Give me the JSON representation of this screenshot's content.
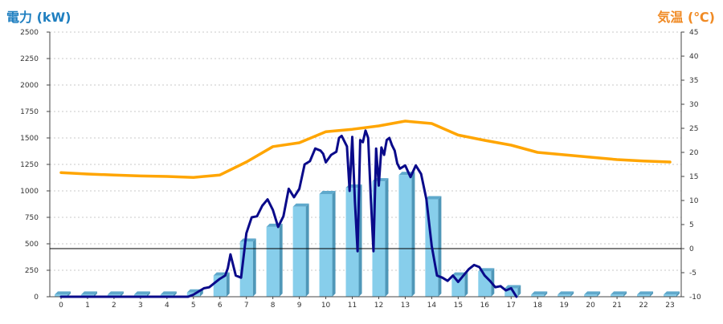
{
  "chart_data": {
    "type": "bar",
    "left_axis_title": "電力 (kW)",
    "right_axis_title": "気温 (℃)",
    "xlim": [
      0,
      23
    ],
    "categories": [
      "0",
      "1",
      "2",
      "3",
      "4",
      "5",
      "6",
      "7",
      "8",
      "9",
      "10",
      "11",
      "12",
      "13",
      "14",
      "15",
      "16",
      "17",
      "18",
      "19",
      "20",
      "21",
      "22",
      "23"
    ],
    "y_left": {
      "ylim": [
        0,
        2500
      ],
      "ticks": [
        0,
        250,
        500,
        750,
        1000,
        1250,
        1500,
        1750,
        2000,
        2250,
        2500
      ]
    },
    "y_right": {
      "ylim": [
        -10,
        45
      ],
      "ticks": [
        -10,
        -5,
        0,
        5,
        10,
        15,
        20,
        25,
        30,
        35,
        40,
        45
      ]
    },
    "grid": true,
    "bar_series": {
      "name": "",
      "axis": "left",
      "color": "#87ceeb",
      "values": [
        20,
        20,
        20,
        20,
        20,
        40,
        200,
        520,
        660,
        850,
        970,
        1030,
        1090,
        1150,
        920,
        200,
        240,
        80,
        20,
        20,
        20,
        20,
        20,
        20
      ]
    },
    "line_series": [
      {
        "name": "",
        "axis": "left",
        "color": "#0a0a8a",
        "x": [
          0,
          1,
          2,
          3,
          4,
          4.8,
          5,
          5.2,
          5.4,
          5.6,
          5.8,
          6,
          6.2,
          6.3,
          6.4,
          6.5,
          6.6,
          6.8,
          7,
          7.2,
          7.4,
          7.6,
          7.8,
          8,
          8.2,
          8.4,
          8.6,
          8.8,
          9,
          9.2,
          9.4,
          9.6,
          9.8,
          9.9,
          10,
          10.2,
          10.4,
          10.5,
          10.6,
          10.8,
          10.9,
          11,
          11.1,
          11.2,
          11.3,
          11.4,
          11.5,
          11.6,
          11.7,
          11.8,
          11.9,
          12,
          12.1,
          12.2,
          12.3,
          12.4,
          12.5,
          12.6,
          12.7,
          12.8,
          13,
          13.2,
          13.4,
          13.6,
          13.8,
          14,
          14.2,
          14.4,
          14.6,
          14.8,
          15,
          15.2,
          15.4,
          15.6,
          15.8,
          16,
          16.2,
          16.4,
          16.6,
          16.8,
          17,
          17.2
        ],
        "values": [
          0,
          0,
          0,
          0,
          0,
          0,
          20,
          50,
          80,
          90,
          130,
          170,
          200,
          270,
          400,
          300,
          200,
          180,
          600,
          750,
          760,
          860,
          920,
          820,
          660,
          760,
          1020,
          940,
          1020,
          1250,
          1280,
          1400,
          1380,
          1350,
          1270,
          1340,
          1370,
          1500,
          1520,
          1420,
          1000,
          1510,
          900,
          430,
          1480,
          1460,
          1570,
          1500,
          930,
          430,
          1400,
          1050,
          1410,
          1340,
          1480,
          1500,
          1430,
          1380,
          1260,
          1210,
          1240,
          1130,
          1240,
          1160,
          920,
          480,
          200,
          180,
          150,
          200,
          140,
          200,
          260,
          300,
          280,
          200,
          150,
          90,
          100,
          60,
          80,
          0
        ],
        "label_axis": "left"
      },
      {
        "name": "",
        "axis": "right",
        "color": "#ffa500",
        "x": [
          0,
          1,
          2,
          3,
          4,
          5,
          6,
          7,
          8,
          9,
          10,
          11,
          12,
          13,
          14,
          15,
          16,
          17,
          18,
          19,
          20,
          21,
          22,
          23
        ],
        "values": [
          15.8,
          15.5,
          15.3,
          15.1,
          15.0,
          14.8,
          15.3,
          18.0,
          21.2,
          22.0,
          24.3,
          24.8,
          25.5,
          26.5,
          26.0,
          23.6,
          22.5,
          21.5,
          20.0,
          19.5,
          19.0,
          18.5,
          18.2,
          18.0
        ]
      }
    ],
    "reference_line": {
      "axis": "right",
      "value": 0,
      "color": "#000000"
    }
  }
}
